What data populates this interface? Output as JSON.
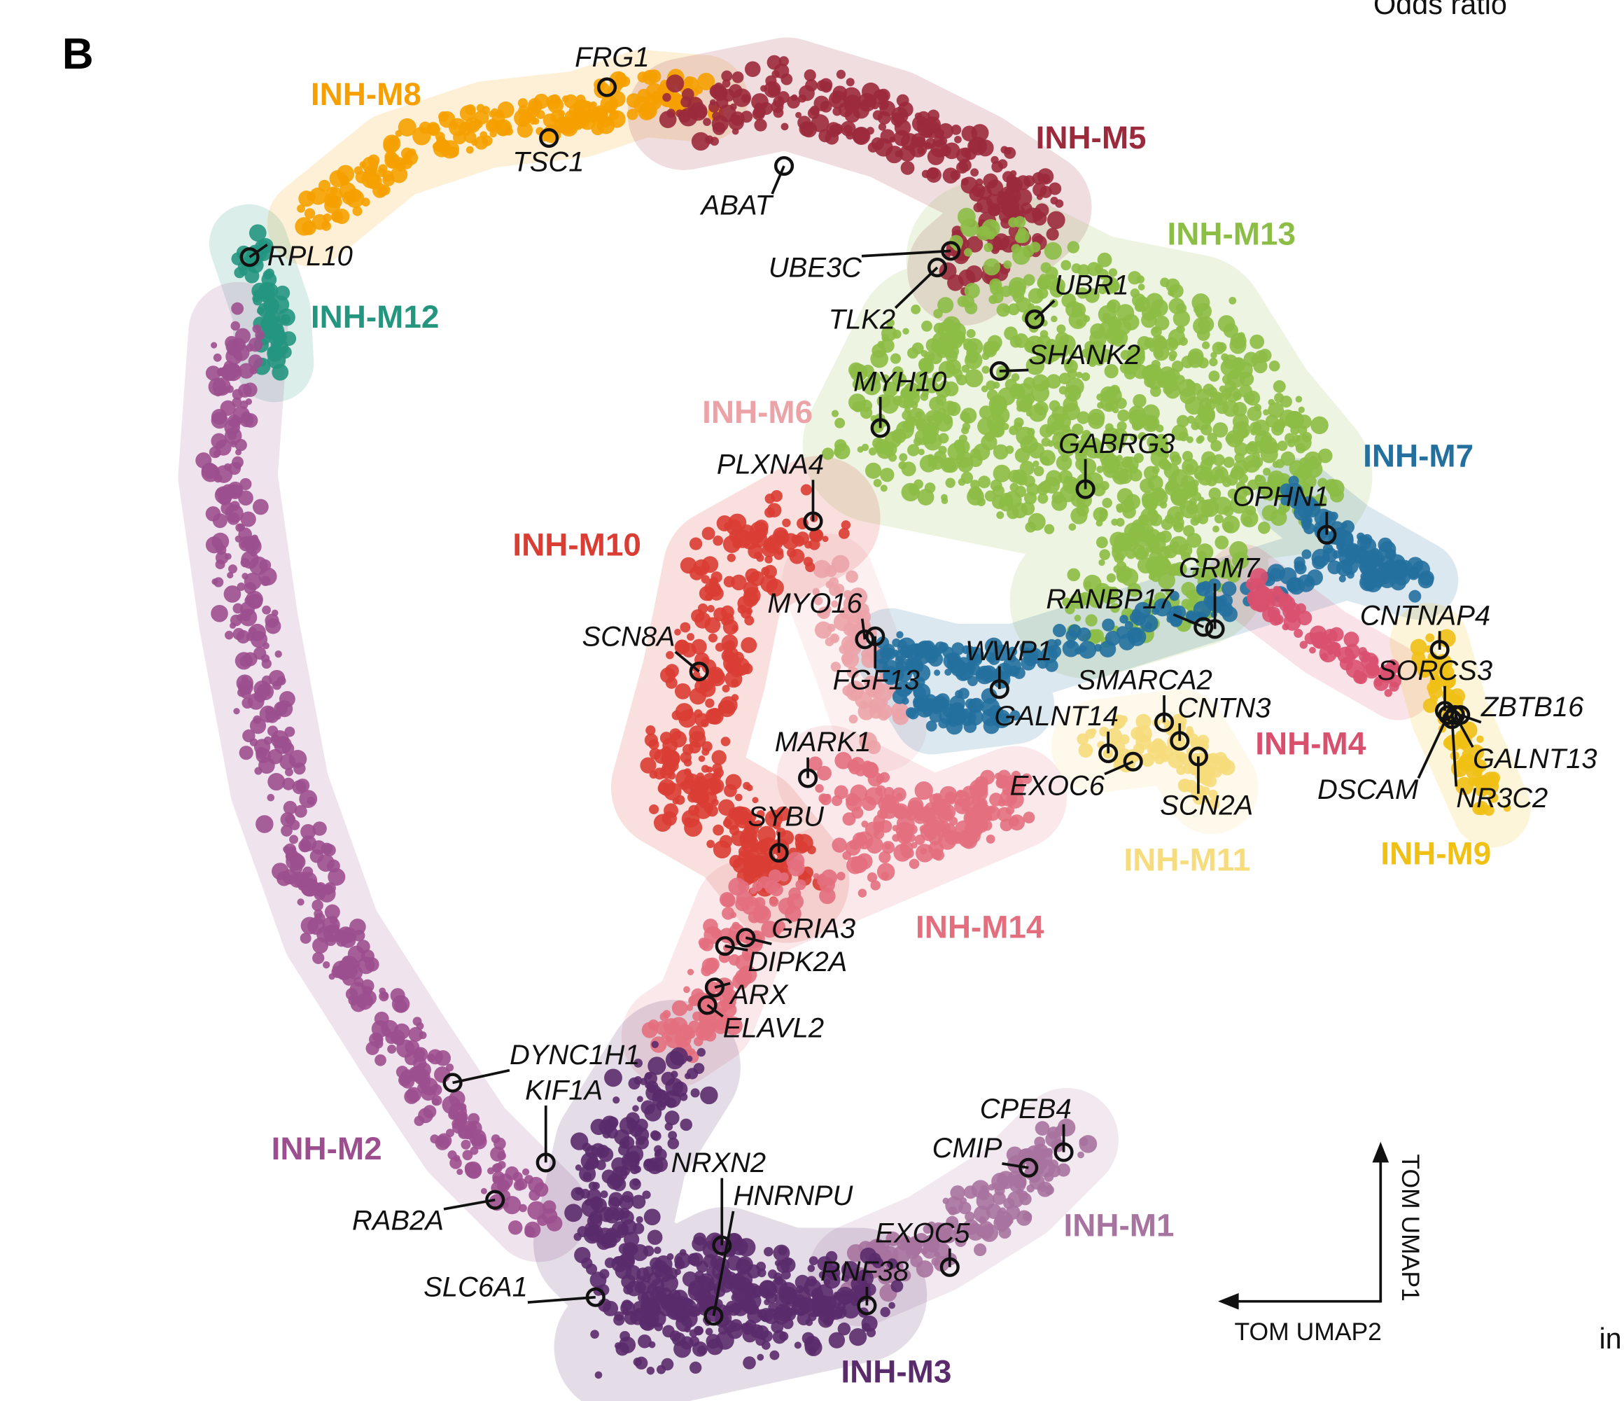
{
  "panel": "B",
  "header_fragment": "Odds ratio",
  "side_fragment": "in",
  "axes": {
    "vertical": "TOM UMAP1",
    "horizontal": "TOM UMAP2"
  },
  "modules": [
    {
      "label": "INH-M8"
    },
    {
      "label": "INH-M5"
    },
    {
      "label": "INH-M13"
    },
    {
      "label": "INH-M12"
    },
    {
      "label": "INH-M6"
    },
    {
      "label": "INH-M7"
    },
    {
      "label": "INH-M10"
    },
    {
      "label": "INH-M4"
    },
    {
      "label": "INH-M9"
    },
    {
      "label": "INH-M11"
    },
    {
      "label": "INH-M14"
    },
    {
      "label": "INH-M2"
    },
    {
      "label": "INH-M1"
    },
    {
      "label": "INH-M3"
    }
  ],
  "genes": [
    {
      "label": "FRG1"
    },
    {
      "label": "TSC1"
    },
    {
      "label": "ABAT"
    },
    {
      "label": "RPL10"
    },
    {
      "label": "UBE3C"
    },
    {
      "label": "TLK2"
    },
    {
      "label": "UBR1"
    },
    {
      "label": "SHANK2"
    },
    {
      "label": "MYH10"
    },
    {
      "label": "GABRG3"
    },
    {
      "label": "PLXNA4"
    },
    {
      "label": "OPHN1"
    },
    {
      "label": "GRM7"
    },
    {
      "label": "RANBP17"
    },
    {
      "label": "CNTNAP4"
    },
    {
      "label": "MYO16"
    },
    {
      "label": "SCN8A"
    },
    {
      "label": "WWP1"
    },
    {
      "label": "FGF13"
    },
    {
      "label": "SMARCA2"
    },
    {
      "label": "SORCS3"
    },
    {
      "label": "CNTN3"
    },
    {
      "label": "ZBTB16"
    },
    {
      "label": "GALNT14"
    },
    {
      "label": "MARK1"
    },
    {
      "label": "GALNT13"
    },
    {
      "label": "EXOC6"
    },
    {
      "label": "DSCAM"
    },
    {
      "label": "NR3C2"
    },
    {
      "label": "SCN2A"
    },
    {
      "label": "SYBU"
    },
    {
      "label": "GRIA3"
    },
    {
      "label": "DIPK2A"
    },
    {
      "label": "ARX"
    },
    {
      "label": "ELAVL2"
    },
    {
      "label": "DYNC1H1"
    },
    {
      "label": "KIF1A"
    },
    {
      "label": "CPEB4"
    },
    {
      "label": "NRXN2"
    },
    {
      "label": "CMIP"
    },
    {
      "label": "HNRNPU"
    },
    {
      "label": "RAB2A"
    },
    {
      "label": "EXOC5"
    },
    {
      "label": "RNF38"
    },
    {
      "label": "SLC6A1"
    }
  ]
}
